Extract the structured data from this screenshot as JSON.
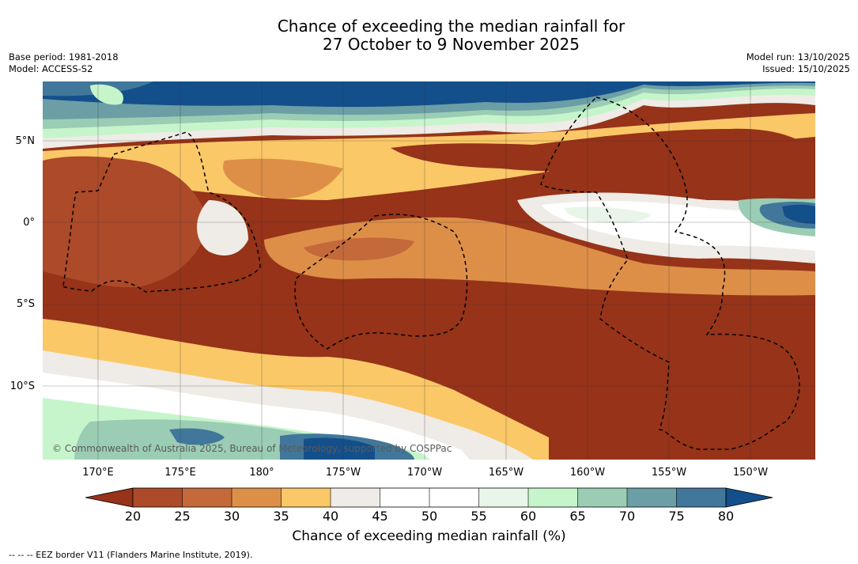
{
  "title": {
    "line1": "Chance of exceeding the median rainfall for",
    "line2": "27 October to 9 November 2025"
  },
  "meta": {
    "base_period": "Base period: 1981-2018",
    "model": "Model: ACCESS-S2",
    "model_run": "Model run: 13/10/2025",
    "issued": "Issued: 15/10/2025"
  },
  "map": {
    "copyright": "© Commonwealth of Australia 2025, Bureau of Meteorology, supported by COSPPac",
    "lat_labels": [
      "5°N",
      "0°",
      "5°S",
      "10°S"
    ],
    "lon_labels": [
      "170°E",
      "175°E",
      "180°",
      "175°W",
      "170°W",
      "165°W",
      "160°W",
      "155°W",
      "150°W"
    ]
  },
  "colorbar": {
    "ticks": [
      "20",
      "25",
      "30",
      "35",
      "40",
      "45",
      "50",
      "55",
      "60",
      "65",
      "70",
      "75",
      "80"
    ],
    "colors": {
      "below_20": "#963319",
      "b20_25": "#ac4a29",
      "b25_30": "#c4693a",
      "b30_35": "#dd8f48",
      "b35_40": "#fac867",
      "b40_45": "#efebe6",
      "b45_50": "#ffffff",
      "b50_55": "#ffffff",
      "b55_60": "#e8f5e8",
      "b60_65": "#c6f5cb",
      "b65_70": "#9bcdb5",
      "b70_75": "#6b9fa5",
      "b75_80": "#41779a",
      "above_80": "#134f8b"
    },
    "label": "Chance of exceeding median rainfall (%)"
  },
  "legend": {
    "eez": "--  --  -- EEZ border V11 (Flanders Marine Institute, 2019)."
  }
}
